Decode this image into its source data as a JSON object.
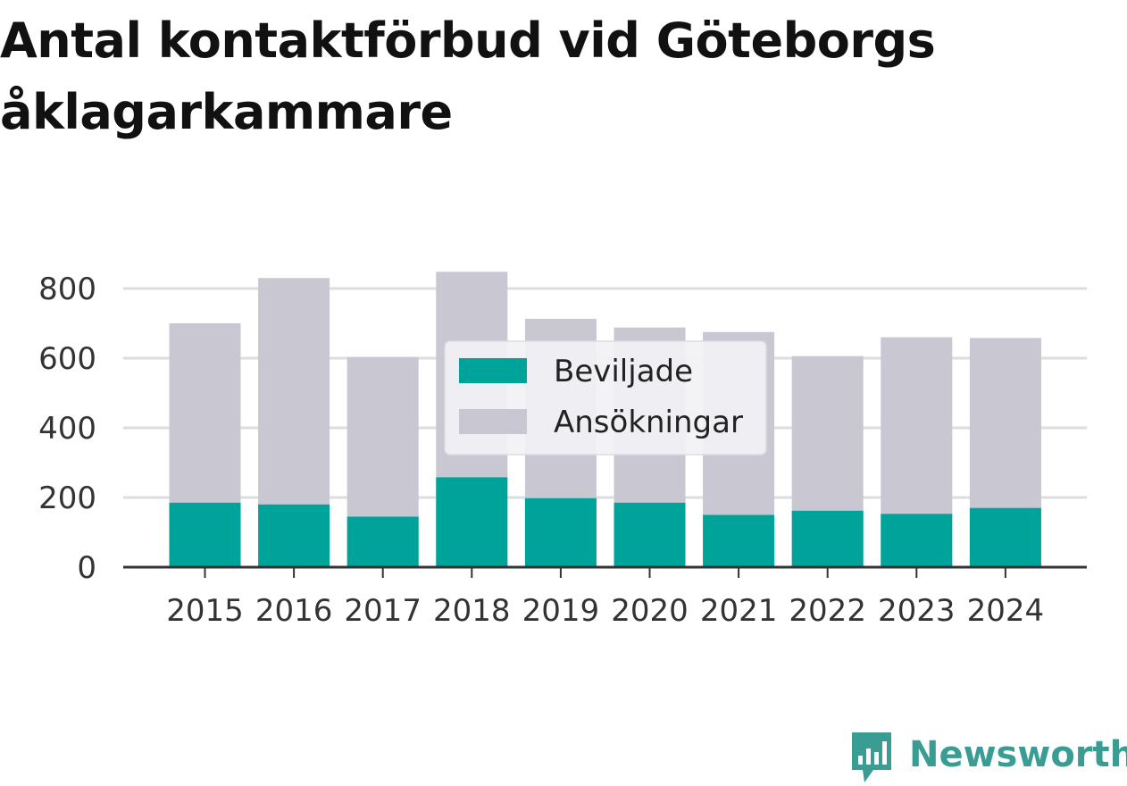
{
  "colors": {
    "beviljade": "#00a39a",
    "ansokningar": "#c8c7d2",
    "grid": "#dddddd",
    "axis": "#333333",
    "text": "#333333",
    "brand": "#3a9d93"
  },
  "brand": {
    "name": "Newsworthy",
    "icon": "newsworthy-logo-icon"
  },
  "chart_data": {
    "type": "bar",
    "title": "Antal kontaktförbud vid Göteborgs åklagarkammare",
    "xlabel": "",
    "ylabel": "",
    "categories": [
      "2015",
      "2016",
      "2017",
      "2018",
      "2019",
      "2020",
      "2021",
      "2022",
      "2023",
      "2024"
    ],
    "series": [
      {
        "name": "Beviljade",
        "values": [
          185,
          180,
          145,
          258,
          198,
          185,
          150,
          162,
          153,
          170
        ]
      },
      {
        "name": "Ansökningar",
        "values": [
          700,
          830,
          603,
          848,
          713,
          688,
          675,
          606,
          660,
          658
        ]
      }
    ],
    "yticks": [
      0,
      200,
      400,
      600,
      800
    ],
    "ylim": [
      0,
      800
    ],
    "grid": true,
    "legend": "center"
  }
}
